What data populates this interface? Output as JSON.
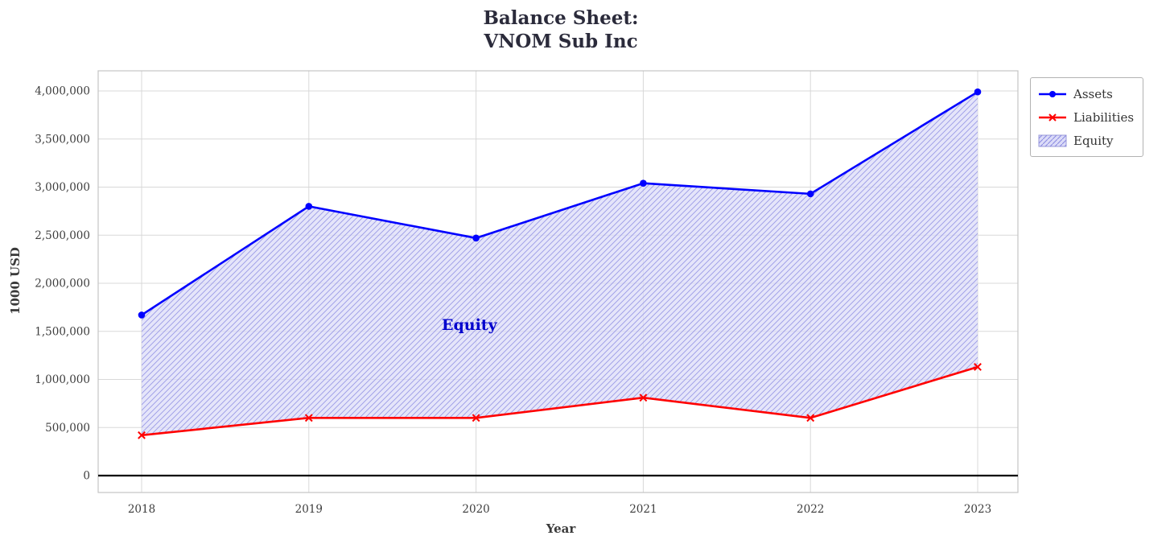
{
  "title_lines": [
    "Balance Sheet:",
    "VNOM Sub Inc"
  ],
  "chart_data": {
    "type": "line",
    "title": "Balance Sheet: VNOM Sub Inc",
    "xlabel": "Year",
    "ylabel": "1000 USD",
    "x": [
      2018,
      2019,
      2020,
      2021,
      2022,
      2023
    ],
    "xtick_labels": [
      "2018",
      "2019",
      "2020",
      "2021",
      "2022",
      "2023"
    ],
    "ytick_labels": [
      "0",
      "500,000",
      "1,000,000",
      "1,500,000",
      "2,000,000",
      "2,500,000",
      "3,000,000",
      "3,500,000",
      "4,000,000"
    ],
    "ytick_values": [
      0,
      500000,
      1000000,
      1500000,
      2000000,
      2500000,
      3000000,
      3500000,
      4000000
    ],
    "ylim": [
      0,
      4000000
    ],
    "grid": true,
    "series": [
      {
        "name": "Assets",
        "color": "#0000ff",
        "marker": "circle",
        "values": [
          1670000,
          2800000,
          2470000,
          3040000,
          2930000,
          3990000
        ]
      },
      {
        "name": "Liabilities",
        "color": "#ff0000",
        "marker": "x",
        "values": [
          420000,
          600000,
          600000,
          810000,
          600000,
          1130000
        ]
      }
    ],
    "fill_between": {
      "label": "Equity",
      "between": [
        "Assets",
        "Liabilities"
      ],
      "facecolor": "#dcdcf8",
      "hatch": "///",
      "hatch_color": "#8888e0"
    },
    "annotation": {
      "text": "Equity",
      "color": "#0000cd"
    },
    "zero_line_color": "#000000",
    "grid_color": "#d8d8d8",
    "frame_color": "#c4c4c4",
    "tick_label_color": "#3d3d3d",
    "legend": {
      "position": "upper-right-outside",
      "entries": [
        "Assets",
        "Liabilities",
        "Equity"
      ]
    }
  }
}
